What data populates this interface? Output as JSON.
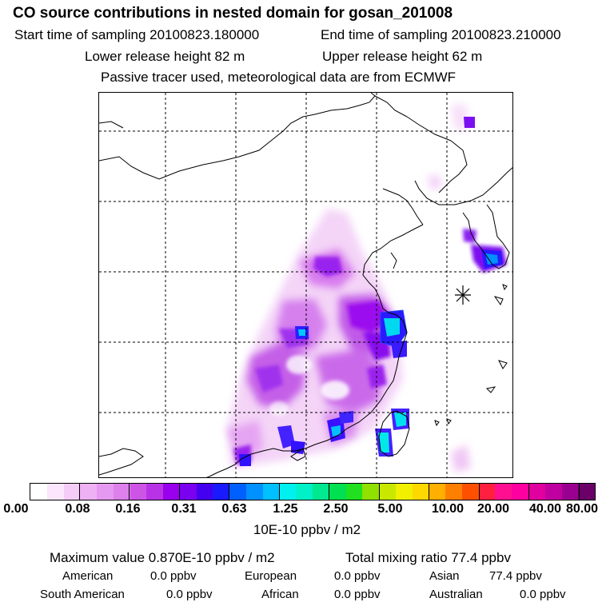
{
  "header": {
    "title": "CO  source contributions in nested domain for gosan_201008",
    "start_label": "Start time of sampling 20100823.180000",
    "end_label": "End time of sampling 20100823.210000",
    "lower_release": "Lower release height   82 m",
    "upper_release": "Upper release height   62 m",
    "tracer_note": "Passive tracer used, meteorological data are from ECMWF"
  },
  "map": {
    "receptor_marker": "star-icon",
    "coastline_color": "#000000"
  },
  "colorbar": {
    "colors": [
      "#ffffff",
      "#fce6fc",
      "#f5ccf8",
      "#eeb2f4",
      "#e699f0",
      "#de80ec",
      "#cc55e6",
      "#b833e6",
      "#9900ee",
      "#7a00f0",
      "#4400ee",
      "#1a1aff",
      "#0060ff",
      "#0090ff",
      "#00c0ff",
      "#00f0f0",
      "#00f0c8",
      "#00e890",
      "#00e050",
      "#20e020",
      "#90e000",
      "#c8e800",
      "#f0f000",
      "#ffd800",
      "#ffb000",
      "#ff8000",
      "#ff5000",
      "#ff2040",
      "#ff1090",
      "#ff00a0",
      "#e000a0",
      "#c000a0",
      "#9a0090",
      "#6a0068"
    ],
    "tick_labels": [
      "0.00",
      "0.08",
      "0.16",
      "0.31",
      "0.63",
      "1.25",
      "2.50",
      "5.00",
      "10.00",
      "20.00",
      "40.00",
      "80.00"
    ],
    "units": "10E-10 ppbv / m2"
  },
  "summary": {
    "max_value": "Maximum value  0.870E-10 ppbv / m2",
    "total_mixing": "Total mixing ratio       77.4 ppbv",
    "american_label": "American",
    "american_value": "0.0 ppbv",
    "european_label": "European",
    "european_value": "0.0 ppbv",
    "asian_label": "Asian",
    "asian_value": "77.4 ppbv",
    "south_american_label": "South American",
    "south_american_value": "0.0 ppbv",
    "african_label": "African",
    "african_value": "0.0 ppbv",
    "australian_label": "Australian",
    "australian_value": "0.0 ppbv"
  }
}
